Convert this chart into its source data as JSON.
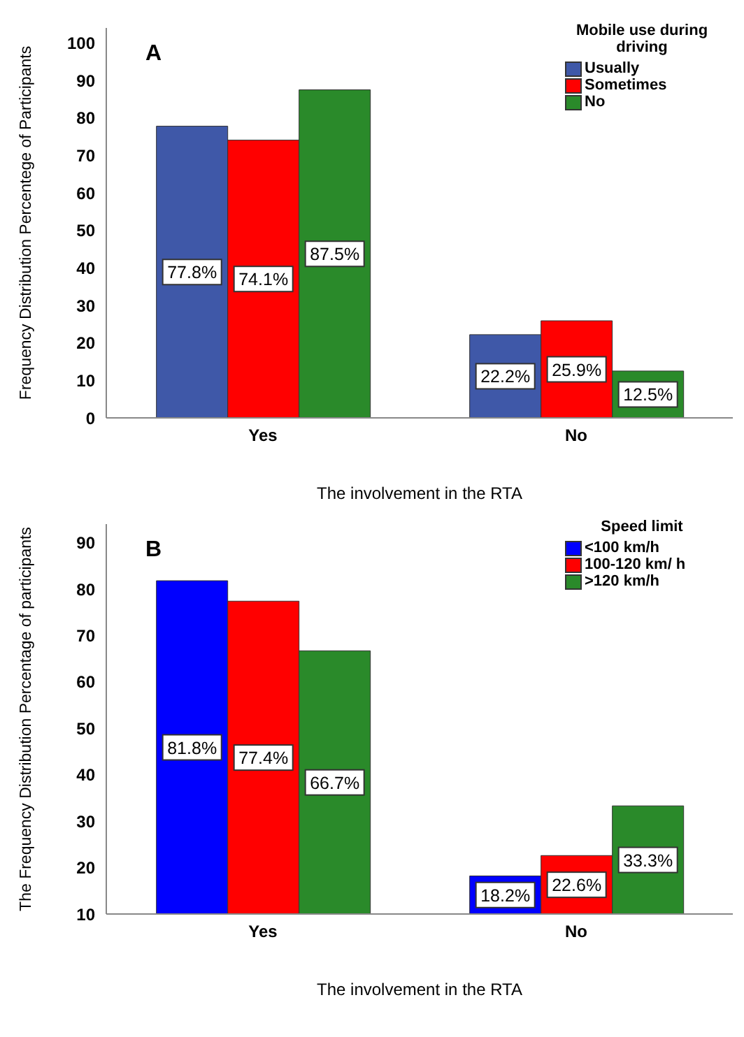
{
  "chart_data": [
    {
      "type": "bar",
      "title": "A",
      "xlabel": "The involvement in the RTA",
      "ylabel": "Frequency Distribution Percentege of Participants",
      "legend_title": "Mobile use during driving",
      "categories": [
        "Yes",
        "No"
      ],
      "ylim": [
        0,
        104
      ],
      "yticks": [
        0,
        10,
        20,
        30,
        40,
        50,
        60,
        70,
        80,
        90,
        100
      ],
      "legend": "top right",
      "grid": false,
      "series": [
        {
          "name": "Usually",
          "color": "#3f58a8",
          "values": [
            77.8,
            22.2
          ],
          "value_labels": [
            "77.8%",
            "22.2%"
          ]
        },
        {
          "name": "Sometimes",
          "color": "#ff0000",
          "values": [
            74.1,
            25.9
          ],
          "value_labels": [
            "74.1%",
            "25.9%"
          ]
        },
        {
          "name": "No",
          "color": "#2a8a2a",
          "values": [
            87.5,
            12.5
          ],
          "value_labels": [
            "87.5%",
            "12.5%"
          ]
        }
      ]
    },
    {
      "type": "bar",
      "title": "B",
      "xlabel": "The involvement in the RTA",
      "ylabel": "The Frequency Distribution Percentage of participants",
      "legend_title": "Speed limit",
      "categories": [
        "Yes",
        "No"
      ],
      "ylim": [
        10,
        94
      ],
      "yticks": [
        10,
        20,
        30,
        40,
        50,
        60,
        70,
        80,
        90
      ],
      "legend": "top right",
      "grid": false,
      "series": [
        {
          "name": "<100 km/h",
          "color": "#0000ff",
          "values": [
            81.8,
            18.2
          ],
          "value_labels": [
            "81.8%",
            "18.2%"
          ]
        },
        {
          "name": "100-120 km/ h",
          "color": "#ff0000",
          "values": [
            77.4,
            22.6
          ],
          "value_labels": [
            "77.4%",
            "22.6%"
          ]
        },
        {
          "name": ">120 km/h",
          "color": "#2a8a2a",
          "values": [
            66.7,
            33.3
          ],
          "value_labels": [
            "66.7%",
            "33.3%"
          ]
        }
      ]
    }
  ]
}
